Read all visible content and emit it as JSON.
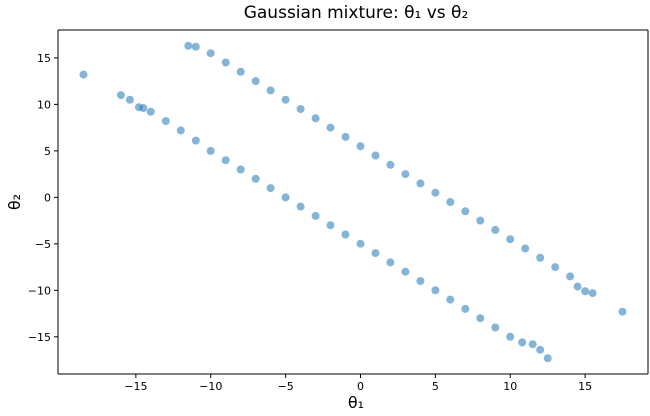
{
  "chart_data": {
    "type": "scatter",
    "title": "Gaussian mixture: θ₁ vs θ₂",
    "xlabel": "θ₁",
    "ylabel": "θ₂",
    "xlim": [
      -20.2,
      19.2
    ],
    "ylim": [
      -19.0,
      18.0
    ],
    "xticks": [
      -15,
      -10,
      -5,
      0,
      5,
      10,
      15
    ],
    "yticks": [
      -15,
      -10,
      -5,
      0,
      5,
      10,
      15
    ],
    "xtick_labels": [
      "−15",
      "−10",
      "−5",
      "0",
      "5",
      "10",
      "15"
    ],
    "ytick_labels": [
      "−15",
      "−10",
      "−5",
      "0",
      "5",
      "10",
      "15"
    ],
    "grid": false,
    "marker_color": "#1f77b4",
    "marker_alpha": 0.55,
    "series": [
      {
        "x": [
          -16.0,
          -15.4,
          -14.8,
          -14.5,
          -14.0,
          -13.0,
          -12.0,
          -11.0,
          -10.0,
          -9.0,
          -8.0,
          -7.0,
          -6.0,
          -5.0,
          -4.0,
          -3.0,
          -2.0,
          -1.0,
          0.0,
          1.0,
          2.0,
          3.0,
          4.0,
          5.0,
          6.0,
          7.0,
          8.0,
          9.0,
          10.0,
          10.8,
          11.5,
          12.0
        ],
        "y": [
          11.0,
          10.5,
          9.7,
          9.6,
          9.2,
          8.2,
          7.2,
          6.1,
          5.0,
          4.0,
          3.0,
          2.0,
          1.0,
          0.0,
          -1.0,
          -2.0,
          -3.0,
          -4.0,
          -5.0,
          -6.0,
          -7.0,
          -8.0,
          -9.0,
          -10.0,
          -11.0,
          -12.0,
          -13.0,
          -14.0,
          -15.0,
          -15.6,
          -15.8,
          -16.4
        ]
      },
      {
        "x": [
          -11.5,
          -11.0,
          -10.0,
          -9.0,
          -8.0,
          -7.0,
          -6.0,
          -5.0,
          -4.0,
          -3.0,
          -2.0,
          -1.0,
          0.0,
          1.0,
          2.0,
          3.0,
          4.0,
          5.0,
          6.0,
          7.0,
          8.0,
          9.0,
          10.0,
          11.0,
          12.0,
          13.0,
          14.0,
          14.5,
          15.0,
          15.5
        ],
        "y": [
          16.3,
          16.2,
          15.5,
          14.5,
          13.5,
          12.5,
          11.5,
          10.5,
          9.5,
          8.5,
          7.5,
          6.5,
          5.5,
          4.5,
          3.5,
          2.5,
          1.5,
          0.5,
          -0.5,
          -1.5,
          -2.5,
          -3.5,
          -4.5,
          -5.5,
          -6.5,
          -7.5,
          -8.5,
          -9.6,
          -10.1,
          -10.3
        ]
      },
      {
        "x": [
          -18.5,
          12.5,
          17.5
        ],
        "y": [
          13.2,
          -17.3,
          -12.3
        ]
      }
    ]
  }
}
